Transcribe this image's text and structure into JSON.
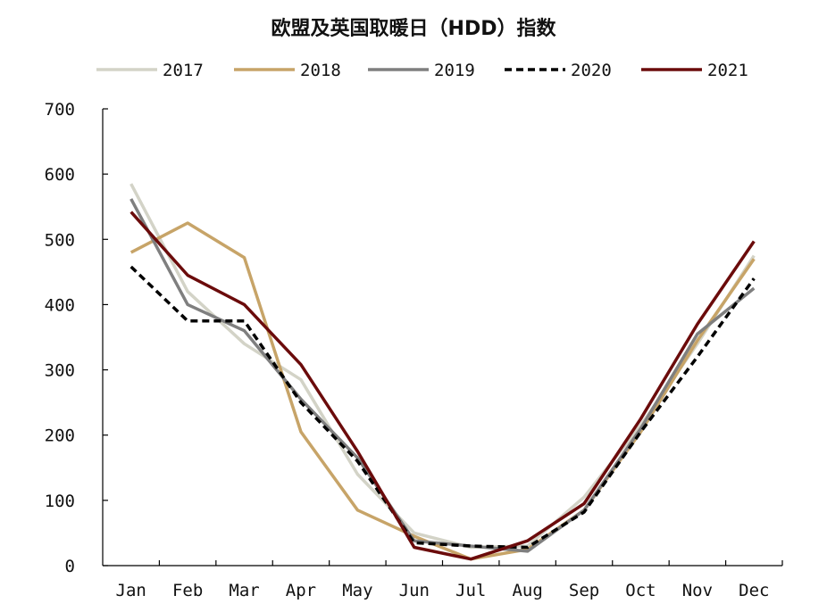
{
  "chart_data": {
    "type": "line",
    "title": "欧盟及英国取暖日（HDD）指数",
    "xlabel": "",
    "ylabel": "",
    "categories": [
      "Jan",
      "Feb",
      "Mar",
      "Apr",
      "May",
      "Jun",
      "Jul",
      "Aug",
      "Sep",
      "Oct",
      "Nov",
      "Dec"
    ],
    "ylim": [
      0,
      700
    ],
    "yticks": [
      0,
      100,
      200,
      300,
      400,
      500,
      600,
      700
    ],
    "grid": false,
    "legend_position": "top",
    "series": [
      {
        "name": "2017",
        "color": "#d3d3c7",
        "dash": false,
        "values": [
          585,
          420,
          340,
          285,
          140,
          50,
          28,
          30,
          105,
          215,
          340,
          475
        ]
      },
      {
        "name": "2018",
        "color": "#c7a468",
        "dash": false,
        "values": [
          480,
          525,
          472,
          205,
          85,
          45,
          10,
          25,
          85,
          205,
          345,
          470
        ]
      },
      {
        "name": "2019",
        "color": "#7f7f7f",
        "dash": false,
        "values": [
          562,
          400,
          360,
          255,
          165,
          38,
          30,
          22,
          85,
          210,
          355,
          425
        ]
      },
      {
        "name": "2020",
        "color": "#000000",
        "dash": true,
        "values": [
          458,
          375,
          375,
          250,
          160,
          35,
          30,
          28,
          82,
          205,
          320,
          440
        ]
      },
      {
        "name": "2021",
        "color": "#6b0b0b",
        "dash": false,
        "values": [
          542,
          445,
          400,
          308,
          175,
          28,
          10,
          38,
          95,
          225,
          370,
          497
        ]
      }
    ]
  }
}
